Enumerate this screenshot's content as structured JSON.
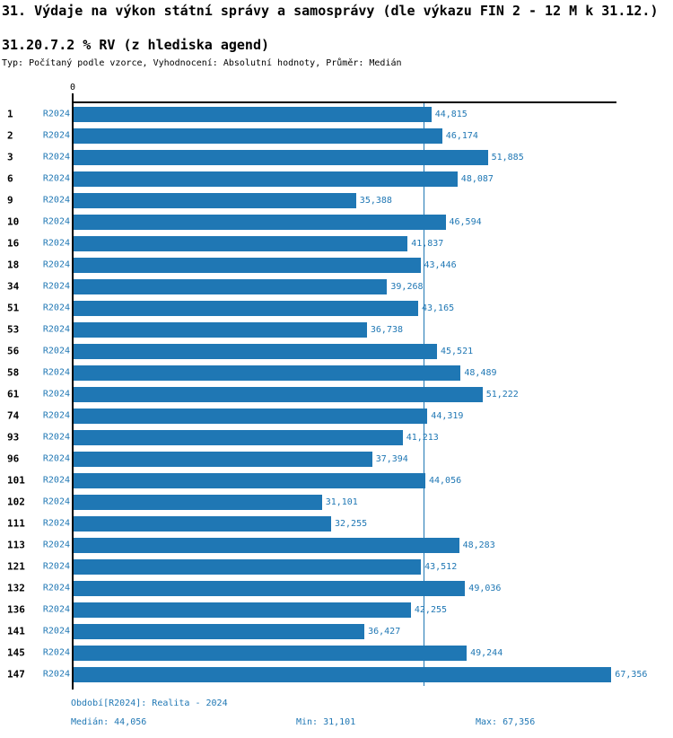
{
  "chart_data": {
    "type": "bar",
    "orientation": "horizontal",
    "title": "31. Výdaje na výkon státní správy a samosprávy (dle výkazu FIN 2 - 12 M k 31.12.)",
    "subtitle": "31.20.7.2 % RV (z hlediska agend)",
    "meta": "Typ: Počítaný podle vzorce, Vyhodnocení: Absolutní hodnoty, Průměr: Medián",
    "series_name": "R2024",
    "categories": [
      "1",
      "2",
      "3",
      "6",
      "9",
      "10",
      "16",
      "18",
      "34",
      "51",
      "53",
      "56",
      "58",
      "61",
      "74",
      "93",
      "96",
      "101",
      "102",
      "111",
      "113",
      "121",
      "132",
      "136",
      "141",
      "145",
      "147"
    ],
    "values": [
      44815,
      46174,
      51885,
      48087,
      35388,
      46594,
      41837,
      43446,
      39268,
      43165,
      36738,
      45521,
      48489,
      51222,
      44319,
      41213,
      37394,
      44056,
      31101,
      32255,
      48283,
      43512,
      49036,
      42255,
      36427,
      49244,
      67356
    ],
    "value_labels": [
      "44,815",
      "46,174",
      "51,885",
      "48,087",
      "35,388",
      "46,594",
      "41,837",
      "43,446",
      "39,268",
      "43,165",
      "36,738",
      "45,521",
      "48,489",
      "51,222",
      "44,319",
      "41,213",
      "37,394",
      "44,056",
      "31,101",
      "32,255",
      "48,283",
      "43,512",
      "49,036",
      "42,255",
      "36,427",
      "49,244",
      "67,356"
    ],
    "axis": {
      "zero_label": "0",
      "xlim": [
        0,
        68000
      ],
      "grid": false,
      "legend": "none"
    },
    "median": 44056,
    "min": 31101,
    "max": 67356
  },
  "footer": {
    "period": "Období[R2024]: Realita - 2024",
    "median": "Medián: 44,056",
    "min": "Min: 31,101",
    "max": "Max: 67,356"
  },
  "colors": {
    "bar": "#1f77b4",
    "accent_text": "#1f77b4",
    "axis": "#000000"
  }
}
